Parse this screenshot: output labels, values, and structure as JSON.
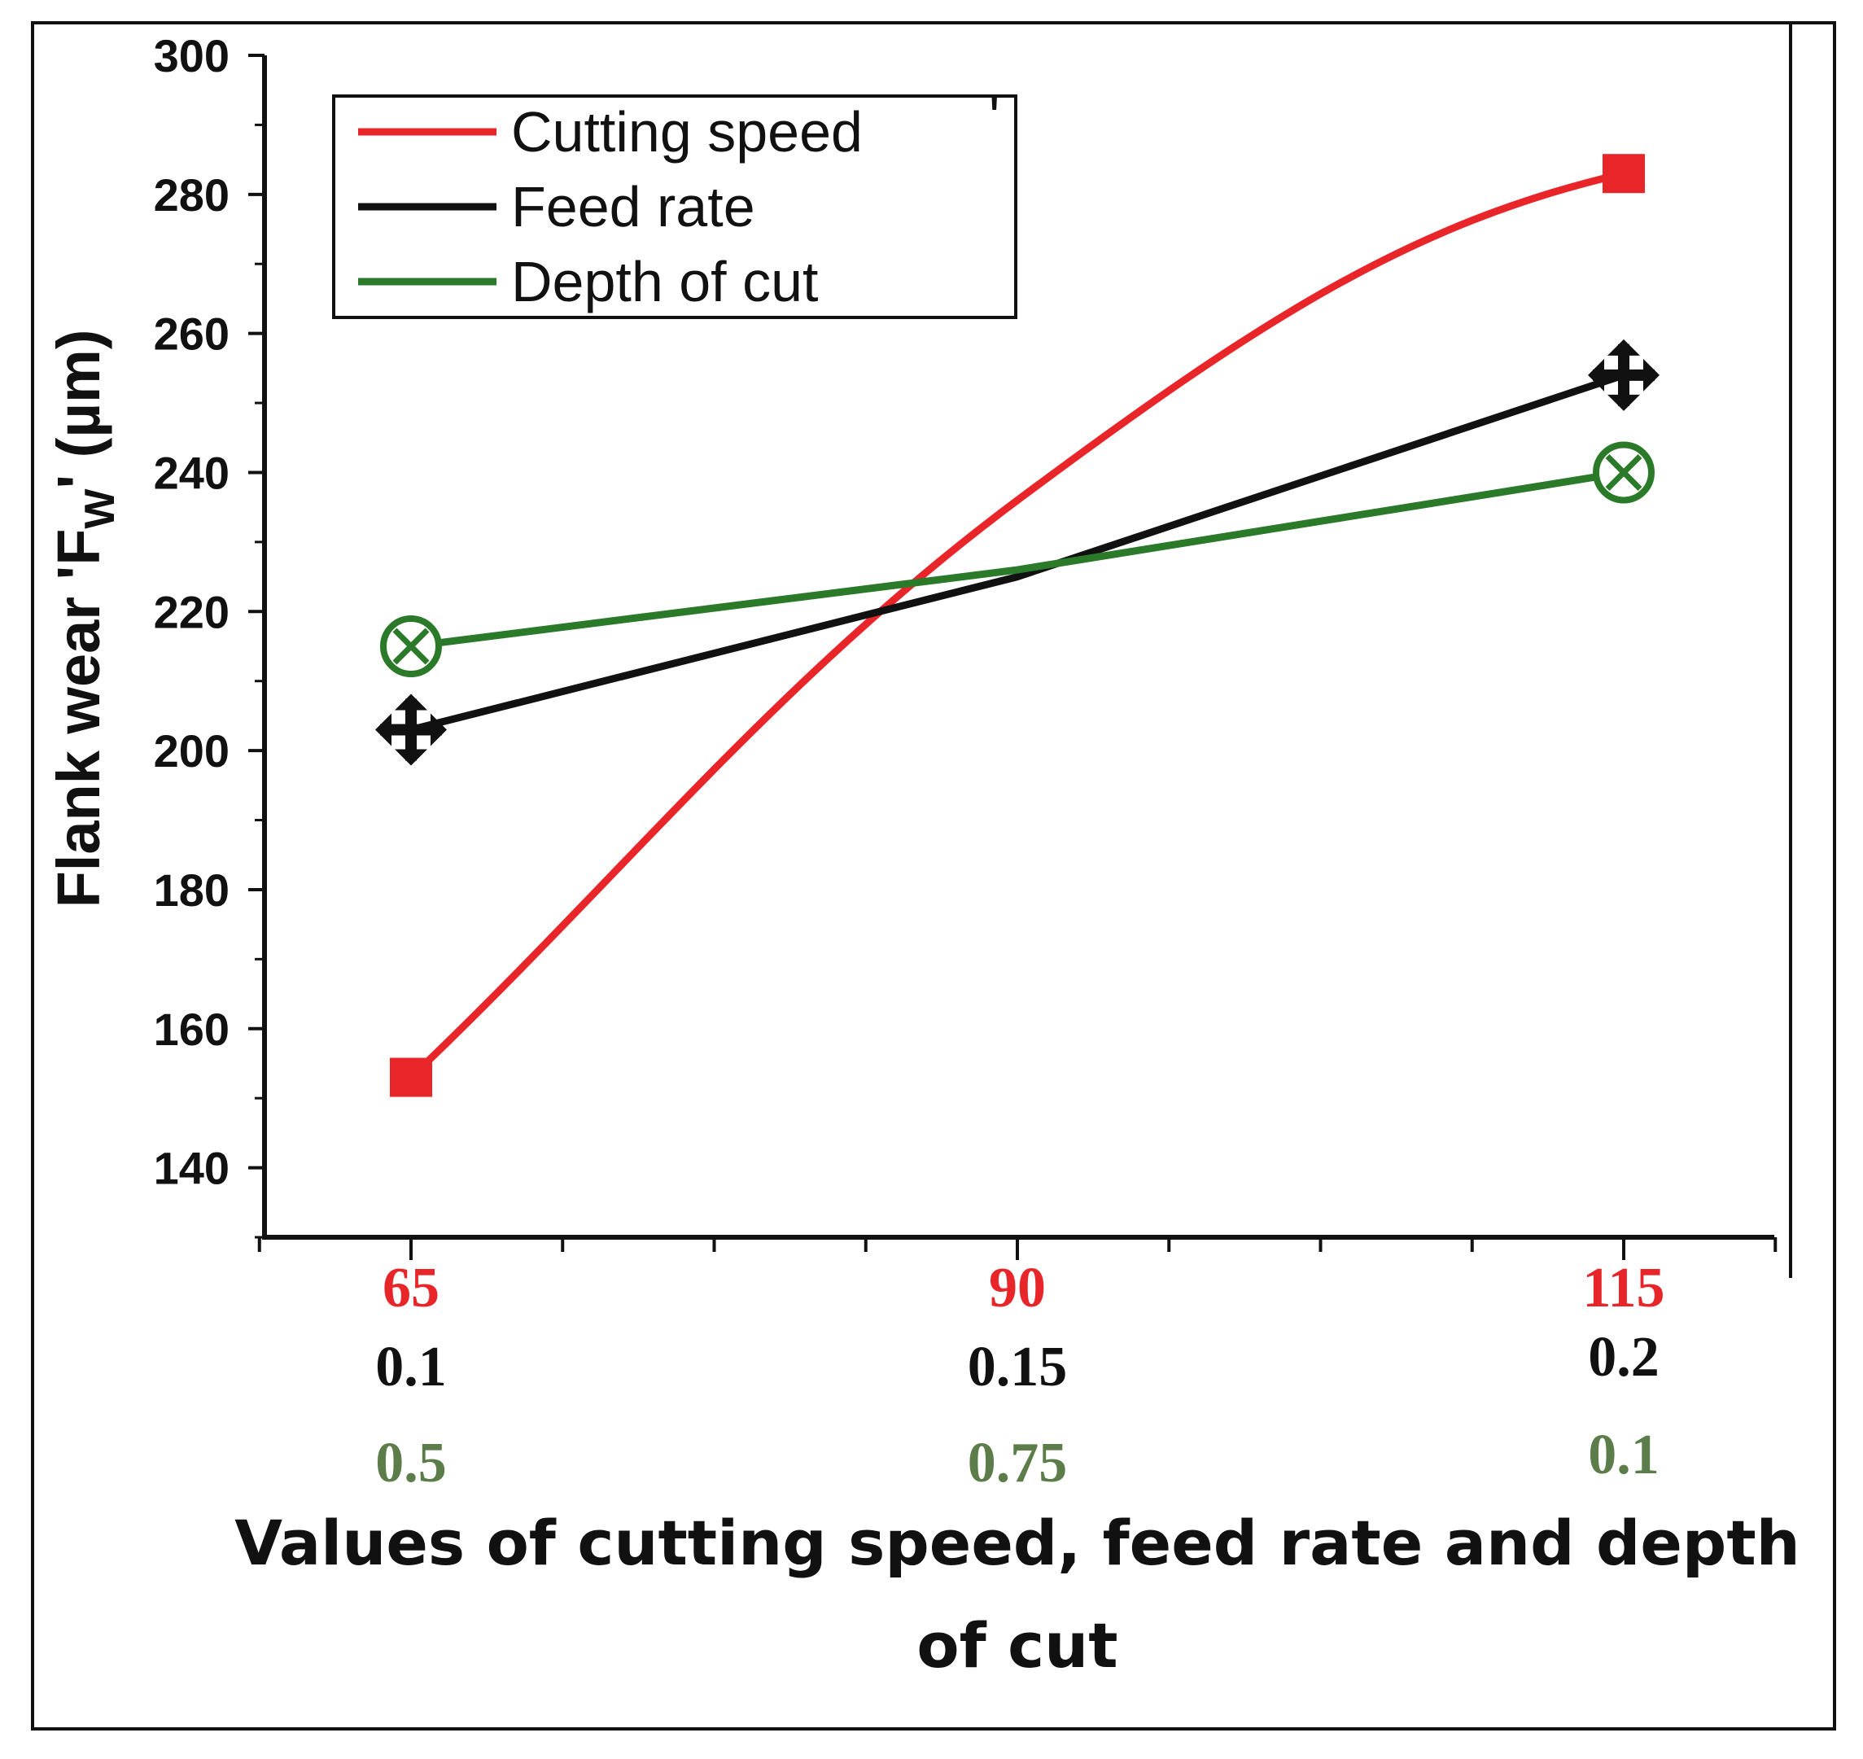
{
  "chart_data": {
    "type": "line",
    "ylabel_main": "Flank wear 'F",
    "ylabel_sub": "W",
    "ylabel_end": "' (µm)",
    "xlabel_line1": "Values of  cutting speed, feed rate and depth",
    "xlabel_line2": "of cut",
    "ylim": [
      130,
      300
    ],
    "yticks": [
      140,
      160,
      180,
      200,
      220,
      240,
      260,
      280,
      300
    ],
    "x_positions": [
      65,
      90,
      115
    ],
    "x_rows": [
      {
        "name": "Cutting speed",
        "labels": [
          "65",
          "90",
          "115"
        ],
        "color": "#e8262a"
      },
      {
        "name": "Feed rate",
        "labels": [
          "0.1",
          "0.15",
          "0.2"
        ],
        "color": "#111111"
      },
      {
        "name": "Depth of cut",
        "labels": [
          "0.5",
          "0.75",
          "0.1"
        ],
        "color": "#5c7d4a"
      }
    ],
    "series": [
      {
        "name": "Cutting speed",
        "color": "#e8262a",
        "marker": "square",
        "values": [
          153,
          236,
          283
        ]
      },
      {
        "name": "Feed rate",
        "color": "#111111",
        "marker": "move-cross",
        "values": [
          203,
          225,
          254
        ]
      },
      {
        "name": "Depth of cut",
        "color": "#2a7a2a",
        "marker": "circle-x",
        "values": [
          215,
          226,
          240
        ]
      }
    ],
    "legend": {
      "placement": "top-left",
      "stray_mark": "'"
    },
    "grid": false
  }
}
